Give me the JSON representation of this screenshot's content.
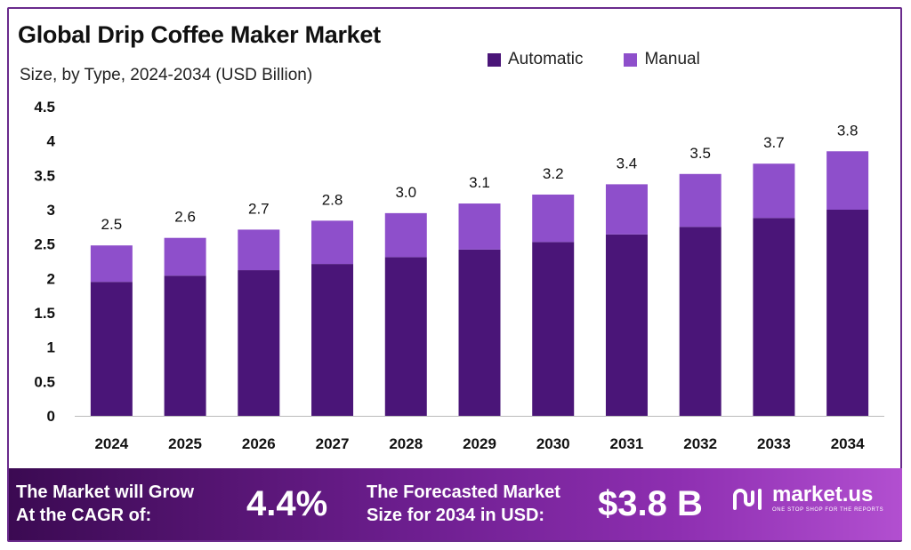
{
  "header": {
    "title": "Global Drip Coffee Maker Market",
    "subtitle": "Size, by Type, 2024-2034 (USD Billion)"
  },
  "colors": {
    "automatic": "#4a1578",
    "manual": "#8e4fcb",
    "axis": "#bbbbbb",
    "label": "#111111"
  },
  "chart_data": {
    "type": "bar",
    "stacked": true,
    "categories": [
      "2024",
      "2025",
      "2026",
      "2027",
      "2028",
      "2029",
      "2030",
      "2031",
      "2032",
      "2033",
      "2034"
    ],
    "series": [
      {
        "name": "Automatic",
        "values": [
          1.95,
          2.04,
          2.12,
          2.21,
          2.31,
          2.42,
          2.53,
          2.64,
          2.75,
          2.88,
          3.0
        ]
      },
      {
        "name": "Manual",
        "values": [
          0.53,
          0.55,
          0.59,
          0.63,
          0.64,
          0.67,
          0.69,
          0.73,
          0.77,
          0.79,
          0.85
        ]
      }
    ],
    "totals_labels": [
      "2.5",
      "2.6",
      "2.7",
      "2.8",
      "3.0",
      "3.1",
      "3.2",
      "3.4",
      "3.5",
      "3.7",
      "3.8"
    ],
    "yticks": [
      "0",
      "0.5",
      "1",
      "1.5",
      "2",
      "2.5",
      "3",
      "3.5",
      "4",
      "4.5"
    ],
    "ylim": [
      0,
      4.5
    ],
    "grid": false,
    "legend_position": "top-right"
  },
  "banner": {
    "cagr_label": "The Market will Grow\nAt the CAGR of:",
    "cagr_value": "4.4%",
    "forecast_label": "The Forecasted Market\nSize for 2034 in USD:",
    "forecast_value": "$3.8 B",
    "logo_text": "market.us",
    "logo_tagline": "ONE STOP SHOP FOR THE REPORTS"
  }
}
